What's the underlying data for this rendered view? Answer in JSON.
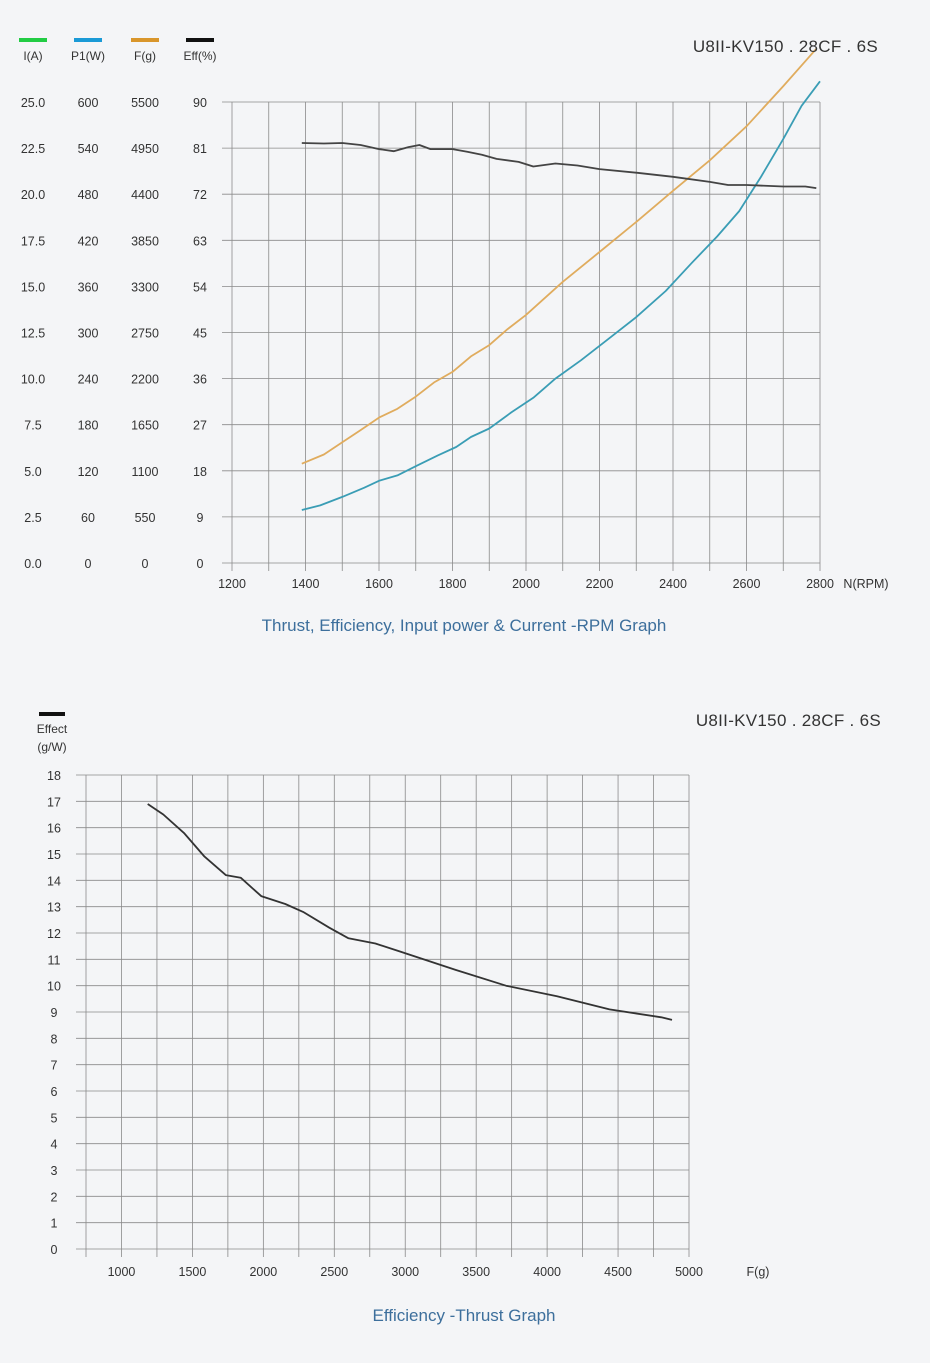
{
  "chart_data": [
    {
      "type": "line",
      "model": "U8II-KV150 . 28CF . 6S",
      "caption": "Thrust, Efficiency, Input power & Current -RPM Graph",
      "xlabel": "N(RPM)",
      "xlim": [
        1200,
        2800
      ],
      "x_ticks": [
        "1200",
        "1400",
        "1600",
        "1800",
        "2000",
        "2200",
        "2400",
        "2600",
        "2800"
      ],
      "y_axes": [
        {
          "label": "I(A)",
          "color": "#22cc44",
          "ylim": [
            0,
            25
          ],
          "ticks": [
            "0.0",
            "2.5",
            "5.0",
            "7.5",
            "10.0",
            "12.5",
            "15.0",
            "17.5",
            "20.0",
            "22.5",
            "25.0"
          ]
        },
        {
          "label": "P1(W)",
          "color": "#1a9ad6",
          "ylim": [
            0,
            600
          ],
          "ticks": [
            "0",
            "60",
            "120",
            "180",
            "240",
            "300",
            "360",
            "420",
            "480",
            "540",
            "600"
          ]
        },
        {
          "label": "F(g)",
          "color": "#d9962b",
          "ylim": [
            0,
            5500
          ],
          "ticks": [
            "0",
            "550",
            "1100",
            "1650",
            "2200",
            "2750",
            "3300",
            "3850",
            "4400",
            "4950",
            "5500"
          ]
        },
        {
          "label": "Eff(%)",
          "color": "#111111",
          "ylim": [
            0,
            90
          ],
          "ticks": [
            "0",
            "9",
            "18",
            "27",
            "36",
            "45",
            "54",
            "63",
            "72",
            "81",
            "90"
          ]
        }
      ],
      "series": [
        {
          "axis": "P1(W)",
          "color": "#3a9db5",
          "x": [
            1390,
            1440,
            1500,
            1560,
            1600,
            1650,
            1700,
            1760,
            1810,
            1850,
            1900,
            1960,
            2020,
            2080,
            2150,
            2220,
            2300,
            2380,
            2450,
            2520,
            2580,
            2640,
            2700,
            2750,
            2800
          ],
          "y": [
            69,
            75,
            86,
            98,
            107,
            114,
            126,
            140,
            151,
            164,
            175,
            196,
            215,
            240,
            264,
            290,
            320,
            354,
            390,
            425,
            458,
            503,
            552,
            595,
            627
          ]
        },
        {
          "axis": "F(g)",
          "color": "#e0ac5e",
          "x": [
            1390,
            1450,
            1500,
            1550,
            1600,
            1650,
            1700,
            1750,
            1800,
            1850,
            1900,
            1950,
            2000,
            2100,
            2200,
            2300,
            2400,
            2500,
            2600,
            2700,
            2790
          ],
          "y": [
            1185,
            1295,
            1440,
            1585,
            1735,
            1840,
            1985,
            2155,
            2280,
            2465,
            2600,
            2790,
            2960,
            3355,
            3710,
            4070,
            4440,
            4805,
            5210,
            5690,
            6135
          ]
        },
        {
          "axis": "Eff(%)",
          "color": "#444444",
          "x": [
            1390,
            1450,
            1500,
            1550,
            1600,
            1640,
            1680,
            1710,
            1740,
            1800,
            1840,
            1880,
            1920,
            1980,
            2020,
            2080,
            2140,
            2200,
            2300,
            2400,
            2500,
            2550,
            2600,
            2700,
            2760,
            2790
          ],
          "y": [
            82.0,
            81.9,
            82.0,
            81.6,
            80.8,
            80.4,
            81.2,
            81.6,
            80.8,
            80.8,
            80.3,
            79.7,
            78.9,
            78.3,
            77.4,
            78.0,
            77.6,
            76.9,
            76.2,
            75.4,
            74.4,
            73.8,
            73.8,
            73.5,
            73.5,
            73.2
          ]
        }
      ]
    },
    {
      "type": "line",
      "model": "U8II-KV150 . 28CF . 6S",
      "caption": "Efficiency -Thrust Graph",
      "legend": "Effect",
      "ylabel": "(g/W)",
      "xlabel": "F(g)",
      "xlim": [
        750,
        5000
      ],
      "ylim": [
        0,
        18
      ],
      "x_ticks": [
        "1000",
        "1500",
        "2000",
        "2500",
        "3000",
        "3500",
        "4000",
        "4500",
        "5000"
      ],
      "y_ticks": [
        "0",
        "1",
        "2",
        "3",
        "4",
        "5",
        "6",
        "7",
        "8",
        "9",
        "10",
        "11",
        "12",
        "13",
        "14",
        "15",
        "16",
        "17",
        "18"
      ],
      "series": [
        {
          "name": "Effect",
          "color": "#333333",
          "x": [
            1185,
            1295,
            1440,
            1585,
            1735,
            1840,
            1985,
            2155,
            2280,
            2465,
            2600,
            2790,
            2960,
            3355,
            3710,
            4070,
            4440,
            4805,
            4880
          ],
          "y": [
            16.9,
            16.5,
            15.8,
            14.9,
            14.2,
            14.1,
            13.4,
            13.1,
            12.8,
            12.2,
            11.8,
            11.6,
            11.3,
            10.6,
            10.0,
            9.6,
            9.1,
            8.8,
            8.7
          ]
        }
      ]
    }
  ]
}
